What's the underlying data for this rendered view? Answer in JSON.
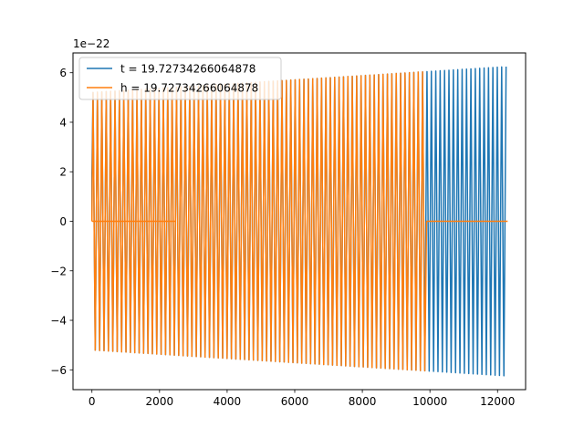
{
  "chart_data": {
    "type": "line",
    "title": "",
    "xlabel": "",
    "ylabel": "",
    "y_offset_text": "1e−22",
    "xlim": [
      -560,
      12830
    ],
    "ylim": [
      -6.8e-22,
      6.8e-22
    ],
    "xticks": [
      0,
      2000,
      4000,
      6000,
      8000,
      10000,
      12000
    ],
    "xtick_labels": [
      "0",
      "2000",
      "4000",
      "6000",
      "8000",
      "10000",
      "12000"
    ],
    "yticks": [
      -6e-22,
      -4e-22,
      -2e-22,
      0,
      2e-22,
      4e-22,
      6e-22
    ],
    "ytick_labels": [
      "−6",
      "−4",
      "−2",
      "0",
      "2",
      "4",
      "6"
    ],
    "grid": false,
    "legend": "upper-left",
    "series": [
      {
        "name": "t = 19.72734266064878",
        "color": "#1f77b4",
        "x_range": [
          0,
          12300
        ],
        "oscillation_period": 130,
        "amplitude_start": 5.2e-22,
        "amplitude_end": 6.25e-22,
        "initial_value": 1.9e-22
      },
      {
        "name": "h = 19.72734266064878",
        "color": "#ff7f0e",
        "x_range": [
          0,
          12300
        ],
        "oscillating_range": [
          0,
          9900
        ],
        "zero_segments": [
          [
            0,
            2450
          ],
          [
            9900,
            12300
          ]
        ],
        "oscillation_period": 130,
        "amplitude_start": 5.2e-22,
        "amplitude_end": 6.25e-22
      }
    ]
  }
}
